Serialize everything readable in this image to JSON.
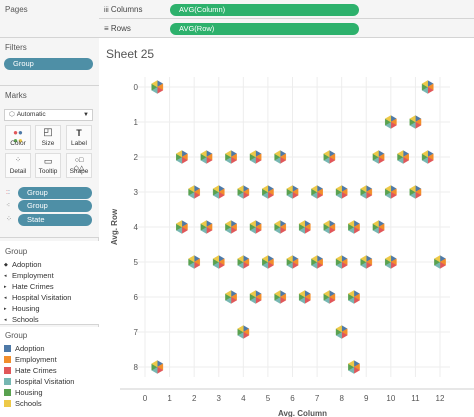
{
  "cards": {
    "pages": {
      "title": "Pages"
    },
    "filters": {
      "title": "Filters",
      "pills": [
        "Group"
      ]
    },
    "marks": {
      "title": "Marks",
      "type": "Automatic",
      "buttons": [
        {
          "label": "Color",
          "icon": "color-icon"
        },
        {
          "label": "Size",
          "icon": "size-icon"
        },
        {
          "label": "Label",
          "icon": "label-icon"
        },
        {
          "label": "Detail",
          "icon": "detail-icon"
        },
        {
          "label": "Tooltip",
          "icon": "tooltip-icon"
        },
        {
          "label": "Shape",
          "icon": "shape-icon"
        }
      ],
      "fields": [
        {
          "label": "Group",
          "icon": "color-dots-icon"
        },
        {
          "label": "Group",
          "icon": "shape-dots-icon"
        },
        {
          "label": "State",
          "icon": "detail-icon"
        }
      ]
    },
    "shape_legend": {
      "title": "Group",
      "items": [
        "Adoption",
        "Employment",
        "Hate Crimes",
        "Hospital Visitation",
        "Housing",
        "Schools"
      ]
    },
    "color_legend": {
      "title": "Group",
      "items": [
        {
          "label": "Adoption",
          "color": "#4e79a7"
        },
        {
          "label": "Employment",
          "color": "#f28e2b"
        },
        {
          "label": "Hate Crimes",
          "color": "#e15759"
        },
        {
          "label": "Hospital Visitation",
          "color": "#76b7b2"
        },
        {
          "label": "Housing",
          "color": "#59a14f"
        },
        {
          "label": "Schools",
          "color": "#edc948"
        }
      ]
    }
  },
  "shelves": {
    "columns": {
      "label": "Columns",
      "pill": "AVG(Column)"
    },
    "rows": {
      "label": "Rows",
      "pill": "AVG(Row)"
    }
  },
  "sheet": {
    "title": "Sheet 25"
  },
  "chart_data": {
    "type": "scatter",
    "xlabel": "Avg. Column",
    "ylabel": "Avg. Row",
    "xlim": [
      0,
      12
    ],
    "ylim": [
      8,
      0
    ],
    "y_reversed": true,
    "xticks": [
      0,
      1,
      2,
      3,
      4,
      5,
      6,
      7,
      8,
      9,
      10,
      11,
      12
    ],
    "yticks": [
      0,
      1,
      2,
      3,
      4,
      5,
      6,
      7,
      8
    ],
    "grid": true,
    "mark": "hexagon pie (6 colored wedges)",
    "points": [
      {
        "x": 0.5,
        "y": 0
      },
      {
        "x": 11.5,
        "y": 0
      },
      {
        "x": 10,
        "y": 1
      },
      {
        "x": 11,
        "y": 1
      },
      {
        "x": 1.5,
        "y": 2
      },
      {
        "x": 2.5,
        "y": 2
      },
      {
        "x": 3.5,
        "y": 2
      },
      {
        "x": 4.5,
        "y": 2
      },
      {
        "x": 5.5,
        "y": 2
      },
      {
        "x": 7.5,
        "y": 2
      },
      {
        "x": 9.5,
        "y": 2
      },
      {
        "x": 10.5,
        "y": 2
      },
      {
        "x": 11.5,
        "y": 2
      },
      {
        "x": 2,
        "y": 3
      },
      {
        "x": 3,
        "y": 3
      },
      {
        "x": 4,
        "y": 3
      },
      {
        "x": 5,
        "y": 3
      },
      {
        "x": 6,
        "y": 3
      },
      {
        "x": 7,
        "y": 3
      },
      {
        "x": 8,
        "y": 3
      },
      {
        "x": 9,
        "y": 3
      },
      {
        "x": 10,
        "y": 3
      },
      {
        "x": 11,
        "y": 3
      },
      {
        "x": 1.5,
        "y": 4
      },
      {
        "x": 2.5,
        "y": 4
      },
      {
        "x": 3.5,
        "y": 4
      },
      {
        "x": 4.5,
        "y": 4
      },
      {
        "x": 5.5,
        "y": 4
      },
      {
        "x": 6.5,
        "y": 4
      },
      {
        "x": 7.5,
        "y": 4
      },
      {
        "x": 8.5,
        "y": 4
      },
      {
        "x": 9.5,
        "y": 4
      },
      {
        "x": 2,
        "y": 5
      },
      {
        "x": 3,
        "y": 5
      },
      {
        "x": 4,
        "y": 5
      },
      {
        "x": 5,
        "y": 5
      },
      {
        "x": 6,
        "y": 5
      },
      {
        "x": 7,
        "y": 5
      },
      {
        "x": 8,
        "y": 5
      },
      {
        "x": 9,
        "y": 5
      },
      {
        "x": 10,
        "y": 5
      },
      {
        "x": 12,
        "y": 5
      },
      {
        "x": 3.5,
        "y": 6
      },
      {
        "x": 4.5,
        "y": 6
      },
      {
        "x": 5.5,
        "y": 6
      },
      {
        "x": 6.5,
        "y": 6
      },
      {
        "x": 7.5,
        "y": 6
      },
      {
        "x": 8.5,
        "y": 6
      },
      {
        "x": 4,
        "y": 7
      },
      {
        "x": 8,
        "y": 7
      },
      {
        "x": 0.5,
        "y": 8
      },
      {
        "x": 8.5,
        "y": 8
      }
    ]
  }
}
